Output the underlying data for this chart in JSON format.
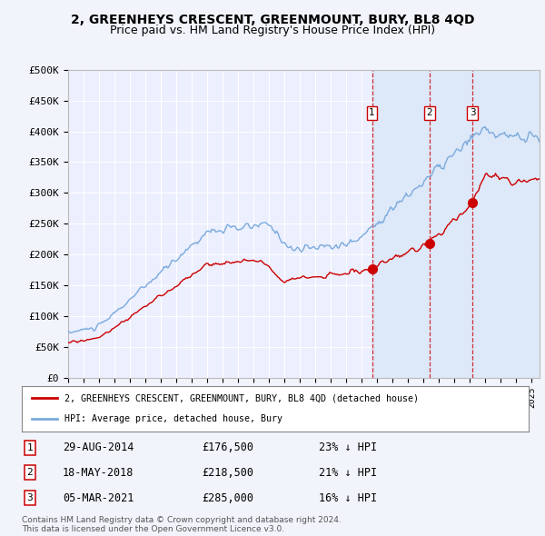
{
  "title": "2, GREENHEYS CRESCENT, GREENMOUNT, BURY, BL8 4QD",
  "subtitle": "Price paid vs. HM Land Registry's House Price Index (HPI)",
  "title_fontsize": 10,
  "subtitle_fontsize": 9,
  "ylabel_ticks": [
    "£0",
    "£50K",
    "£100K",
    "£150K",
    "£200K",
    "£250K",
    "£300K",
    "£350K",
    "£400K",
    "£450K",
    "£500K"
  ],
  "ytick_vals": [
    0,
    50000,
    100000,
    150000,
    200000,
    250000,
    300000,
    350000,
    400000,
    450000,
    500000
  ],
  "ylim": [
    0,
    500000
  ],
  "xlim_start": 1995.0,
  "xlim_end": 2025.5,
  "background_color": "#f2f4fb",
  "plot_bg_color": "#eceffe",
  "grid_color": "#ffffff",
  "hpi_color": "#7aaadd",
  "sale_color": "#cc0000",
  "shade_color": "#dde8f8",
  "sale_dates": [
    2014.66,
    2018.37,
    2021.17
  ],
  "sale_prices": [
    176500,
    218500,
    285000
  ],
  "sale_labels": [
    "1",
    "2",
    "3"
  ],
  "legend_label_sale": "2, GREENHEYS CRESCENT, GREENMOUNT, BURY, BL8 4QD (detached house)",
  "legend_label_hpi": "HPI: Average price, detached house, Bury",
  "table_entries": [
    [
      "1",
      "29-AUG-2014",
      "£176,500",
      "23% ↓ HPI"
    ],
    [
      "2",
      "18-MAY-2018",
      "£218,500",
      "21% ↓ HPI"
    ],
    [
      "3",
      "05-MAR-2021",
      "£285,000",
      "16% ↓ HPI"
    ]
  ],
  "footnote": "Contains HM Land Registry data © Crown copyright and database right 2024.\nThis data is licensed under the Open Government Licence v3.0.",
  "xtick_years": [
    1995,
    1996,
    1997,
    1998,
    1999,
    2000,
    2001,
    2002,
    2003,
    2004,
    2005,
    2006,
    2007,
    2008,
    2009,
    2010,
    2011,
    2012,
    2013,
    2014,
    2015,
    2016,
    2017,
    2018,
    2019,
    2020,
    2021,
    2022,
    2023,
    2024,
    2025
  ]
}
